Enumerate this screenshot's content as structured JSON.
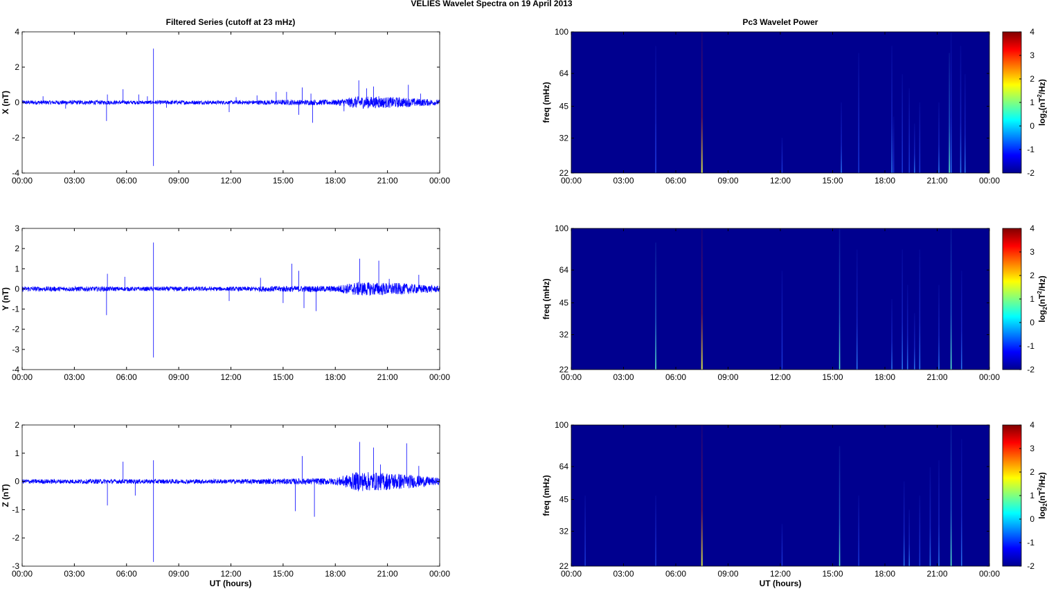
{
  "figure": {
    "title": "VELIES Wavelet Spectra on 19 April     2013",
    "left_title": "Filtered Series (cutoff at 23 mHz)",
    "right_title": "Pc3 Wavelet Power",
    "xlabel": "UT (hours)"
  },
  "colors": {
    "series": "#0000ff",
    "background": "#00008f"
  },
  "chart_data": [
    {
      "type": "line",
      "name": "x-filtered-series",
      "ylabel": "X (nT)",
      "ylim": [
        -4,
        4
      ],
      "yticks": [
        "-4",
        "-2",
        "0",
        "2",
        "4"
      ],
      "xlim": [
        0,
        24
      ],
      "xticks": [
        "00:00",
        "03:00",
        "06:00",
        "09:00",
        "12:00",
        "15:00",
        "18:00",
        "21:00",
        "00:00"
      ],
      "noise": [
        [
          0,
          0.12
        ],
        [
          4,
          0.12
        ],
        [
          6.5,
          0.1
        ],
        [
          9,
          0.12
        ],
        [
          12,
          0.1
        ],
        [
          15,
          0.15
        ],
        [
          18,
          0.15
        ],
        [
          19.3,
          0.35
        ],
        [
          21.5,
          0.3
        ],
        [
          24,
          0.15
        ]
      ],
      "spikes": [
        [
          1.2,
          0.35
        ],
        [
          2.5,
          -0.35
        ],
        [
          4.85,
          -1.05
        ],
        [
          4.9,
          0.45
        ],
        [
          5.8,
          0.75
        ],
        [
          6.7,
          0.45
        ],
        [
          7.2,
          0.35
        ],
        [
          7.55,
          3.05
        ],
        [
          7.55,
          -3.6
        ],
        [
          8.3,
          -0.3
        ],
        [
          11.9,
          -0.55
        ],
        [
          12.3,
          0.3
        ],
        [
          13.5,
          0.4
        ],
        [
          14.6,
          0.6
        ],
        [
          15.2,
          0.6
        ],
        [
          15.9,
          -0.7
        ],
        [
          16.1,
          0.85
        ],
        [
          16.7,
          -1.15
        ],
        [
          16.6,
          0.5
        ],
        [
          18.5,
          -0.5
        ],
        [
          19.35,
          1.25
        ],
        [
          19.8,
          0.8
        ],
        [
          20.2,
          0.9
        ],
        [
          20.5,
          0.35
        ],
        [
          21.2,
          0.25
        ],
        [
          22.2,
          1.0
        ],
        [
          22.9,
          0.5
        ]
      ]
    },
    {
      "type": "line",
      "name": "y-filtered-series",
      "ylabel": "Y (nT)",
      "ylim": [
        -4,
        3
      ],
      "yticks": [
        "-4",
        "-3",
        "-2",
        "-1",
        "0",
        "1",
        "2",
        "3"
      ],
      "xlim": [
        0,
        24
      ],
      "xticks": [
        "00:00",
        "03:00",
        "06:00",
        "09:00",
        "12:00",
        "15:00",
        "18:00",
        "21:00",
        "00:00"
      ],
      "noise": [
        [
          0,
          0.12
        ],
        [
          4,
          0.12
        ],
        [
          6.5,
          0.1
        ],
        [
          9,
          0.12
        ],
        [
          12,
          0.1
        ],
        [
          15,
          0.15
        ],
        [
          18,
          0.15
        ],
        [
          19.3,
          0.35
        ],
        [
          21.5,
          0.3
        ],
        [
          24,
          0.15
        ]
      ],
      "spikes": [
        [
          4.85,
          -1.3
        ],
        [
          4.9,
          0.75
        ],
        [
          5.9,
          0.6
        ],
        [
          7.55,
          2.3
        ],
        [
          7.55,
          -3.4
        ],
        [
          11.9,
          -0.6
        ],
        [
          13.7,
          0.55
        ],
        [
          15.0,
          -0.7
        ],
        [
          15.5,
          1.25
        ],
        [
          15.9,
          0.9
        ],
        [
          16.2,
          -0.95
        ],
        [
          16.9,
          -1.1
        ],
        [
          19.4,
          1.5
        ],
        [
          20.5,
          1.4
        ],
        [
          21.1,
          0.5
        ],
        [
          22.8,
          0.7
        ]
      ]
    },
    {
      "type": "line",
      "name": "z-filtered-series",
      "ylabel": "Z (nT)",
      "ylim": [
        -3,
        2
      ],
      "yticks": [
        "-3",
        "-2",
        "-1",
        "0",
        "1",
        "2"
      ],
      "xlim": [
        0,
        24
      ],
      "xticks": [
        "00:00",
        "03:00",
        "06:00",
        "09:00",
        "12:00",
        "15:00",
        "18:00",
        "21:00",
        "00:00"
      ],
      "noise": [
        [
          0,
          0.08
        ],
        [
          4,
          0.08
        ],
        [
          6.5,
          0.08
        ],
        [
          9,
          0.08
        ],
        [
          12,
          0.08
        ],
        [
          15,
          0.1
        ],
        [
          18,
          0.12
        ],
        [
          19.3,
          0.35
        ],
        [
          21.5,
          0.3
        ],
        [
          24,
          0.12
        ]
      ],
      "spikes": [
        [
          4.9,
          -0.85
        ],
        [
          5.8,
          0.7
        ],
        [
          6.5,
          -0.5
        ],
        [
          7.55,
          0.75
        ],
        [
          7.55,
          -2.85
        ],
        [
          15.7,
          -1.05
        ],
        [
          16.1,
          0.9
        ],
        [
          16.8,
          -1.25
        ],
        [
          19.4,
          1.4
        ],
        [
          20.2,
          1.2
        ],
        [
          20.6,
          0.6
        ],
        [
          22.1,
          1.35
        ],
        [
          22.8,
          0.55
        ]
      ]
    },
    {
      "type": "heatmap",
      "name": "x-wavelet-power",
      "ylabel": "freq (mHz)",
      "yticks": [
        "100",
        "64",
        "45",
        "32",
        "22"
      ],
      "xlim": [
        0,
        24
      ],
      "ylim": [
        22,
        100
      ],
      "zlabel": "log2(nT²/Hz)",
      "zlim": [
        -2,
        4
      ],
      "cticks": [
        "4",
        "3",
        "2",
        "1",
        "0",
        "-1",
        "-2"
      ],
      "xticks": [
        "00:00",
        "03:00",
        "06:00",
        "09:00",
        "12:00",
        "15:00",
        "18:00",
        "21:00",
        "00:00"
      ],
      "streaks": [
        [
          4.85,
          0.0,
          0.9
        ],
        [
          4.85,
          0.5,
          0.35
        ],
        [
          7.5,
          1.0,
          1.4
        ],
        [
          12.1,
          0.3,
          0.25
        ],
        [
          15.5,
          0.4,
          0.5
        ],
        [
          16.5,
          0.3,
          0.85
        ],
        [
          18.4,
          0.6,
          0.9
        ],
        [
          18.5,
          0.3,
          0.4
        ],
        [
          19.0,
          0.3,
          0.7
        ],
        [
          19.4,
          0.3,
          0.6
        ],
        [
          19.7,
          0.4,
          0.35
        ],
        [
          20.0,
          0.3,
          0.5
        ],
        [
          21.1,
          0.4,
          0.5
        ],
        [
          21.7,
          0.8,
          0.85
        ],
        [
          21.8,
          0.4,
          1.0
        ],
        [
          22.35,
          0.5,
          0.9
        ],
        [
          22.6,
          0.4,
          0.7
        ]
      ]
    },
    {
      "type": "heatmap",
      "name": "y-wavelet-power",
      "ylabel": "freq (mHz)",
      "yticks": [
        "100",
        "64",
        "45",
        "32",
        "22"
      ],
      "xlim": [
        0,
        24
      ],
      "ylim": [
        22,
        100
      ],
      "zlabel": "log2(nT²/Hz)",
      "zlim": [
        -2,
        4
      ],
      "cticks": [
        "4",
        "3",
        "2",
        "1",
        "0",
        "-1",
        "-2"
      ],
      "xticks": [
        "00:00",
        "03:00",
        "06:00",
        "09:00",
        "12:00",
        "15:00",
        "18:00",
        "21:00",
        "00:00"
      ],
      "streaks": [
        [
          4.85,
          0.7,
          0.9
        ],
        [
          7.5,
          1.0,
          1.4
        ],
        [
          12.1,
          0.3,
          0.7
        ],
        [
          15.4,
          0.8,
          1.0
        ],
        [
          16.4,
          0.4,
          0.85
        ],
        [
          18.4,
          0.6,
          0.5
        ],
        [
          19.0,
          0.4,
          0.85
        ],
        [
          19.3,
          0.4,
          0.6
        ],
        [
          19.7,
          0.6,
          0.4
        ],
        [
          20.0,
          0.4,
          0.85
        ],
        [
          21.1,
          0.4,
          0.6
        ],
        [
          21.8,
          0.8,
          1.0
        ],
        [
          22.4,
          0.5,
          0.7
        ]
      ]
    },
    {
      "type": "heatmap",
      "name": "z-wavelet-power",
      "ylabel": "freq (mHz)",
      "yticks": [
        "100",
        "64",
        "45",
        "32",
        "22"
      ],
      "xlim": [
        0,
        24
      ],
      "ylim": [
        22,
        100
      ],
      "zlabel": "log2(nT²/Hz)",
      "zlim": [
        -2,
        4
      ],
      "cticks": [
        "4",
        "3",
        "2",
        "1",
        "0",
        "-1",
        "-2"
      ],
      "xticks": [
        "00:00",
        "03:00",
        "06:00",
        "09:00",
        "12:00",
        "15:00",
        "18:00",
        "21:00",
        "00:00"
      ],
      "streaks": [
        [
          0.8,
          0.2,
          0.5
        ],
        [
          4.85,
          0.3,
          0.5
        ],
        [
          7.5,
          1.0,
          1.4
        ],
        [
          12.1,
          0.3,
          0.3
        ],
        [
          15.4,
          0.8,
          0.85
        ],
        [
          16.5,
          0.3,
          0.5
        ],
        [
          19.1,
          0.4,
          0.6
        ],
        [
          19.4,
          0.4,
          0.4
        ],
        [
          20.0,
          0.3,
          0.5
        ],
        [
          20.6,
          0.4,
          0.7
        ],
        [
          21.1,
          0.4,
          0.75
        ],
        [
          21.8,
          0.8,
          1.0
        ],
        [
          22.4,
          0.6,
          0.9
        ]
      ]
    }
  ]
}
